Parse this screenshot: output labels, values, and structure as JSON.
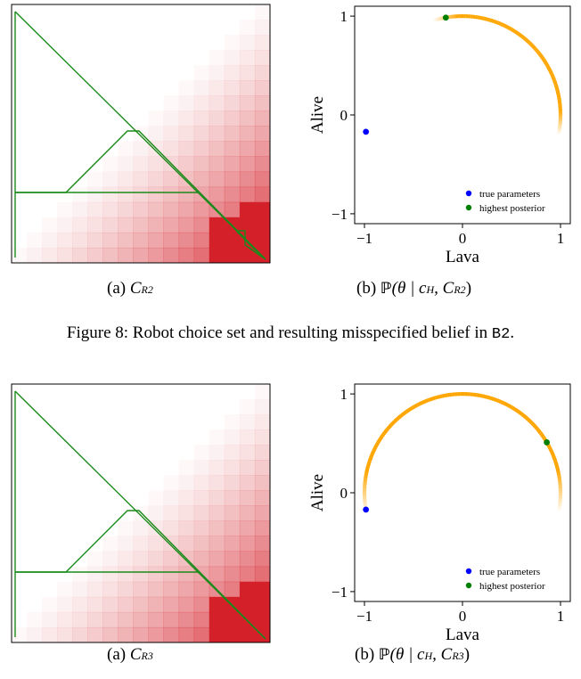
{
  "figures": [
    {
      "grid_panel": {
        "caption_prefix": "(a)",
        "caption_var": "C",
        "caption_sub": "R2"
      },
      "posterior_panel": {
        "caption_prefix": "(b)",
        "caption_prob": "ℙ",
        "caption_theta": "(θ | c",
        "caption_h_sub": "H",
        "caption_comma": ", C",
        "caption_r_sub": "R2",
        "caption_close": ")"
      },
      "caption": {
        "text": "Figure 8: Robot choice set and resulting misspecified belief in ",
        "code": "B2",
        "end": "."
      },
      "chart_data": {
        "type": "scatter",
        "xlabel": "Lava",
        "ylabel": "Alive",
        "xlim": [
          -1.1,
          1.1
        ],
        "ylim": [
          -1.1,
          1.1
        ],
        "xticks": [
          "−1",
          "0",
          "1"
        ],
        "yticks": [
          "1",
          "0",
          "−1"
        ],
        "arc_deg": [
          -12,
          107
        ],
        "arc_color": "#FFA500",
        "series": [
          {
            "name": "true parameters",
            "color": "#0000FF",
            "x": [
              -0.985
            ],
            "y": [
              -0.17
            ]
          },
          {
            "name": "highest posterior",
            "color": "#008000",
            "x": [
              -0.17
            ],
            "y": [
              0.985
            ]
          }
        ],
        "legend": "bottom-right"
      }
    },
    {
      "grid_panel": {
        "caption_prefix": "(a)",
        "caption_var": "C",
        "caption_sub": "R3"
      },
      "posterior_panel": {
        "caption_prefix": "(b)",
        "caption_prob": "ℙ",
        "caption_theta": "(θ | c",
        "caption_h_sub": "H",
        "caption_comma": ", C",
        "caption_r_sub": "R3",
        "caption_close": ")"
      },
      "chart_data": {
        "type": "scatter",
        "xlabel": "Lava",
        "ylabel": "Alive",
        "xlim": [
          -1.1,
          1.1
        ],
        "ylim": [
          -1.1,
          1.1
        ],
        "xticks": [
          "−1",
          "0",
          "1"
        ],
        "yticks": [
          "1",
          "0",
          "−1"
        ],
        "arc_deg": [
          -12,
          192
        ],
        "arc_color": "#FFA500",
        "series": [
          {
            "name": "true parameters",
            "color": "#0000FF",
            "x": [
              -0.985
            ],
            "y": [
              -0.17
            ]
          },
          {
            "name": "highest posterior",
            "color": "#008000",
            "x": [
              0.86
            ],
            "y": [
              0.51
            ]
          }
        ],
        "legend": "bottom-right"
      }
    }
  ]
}
